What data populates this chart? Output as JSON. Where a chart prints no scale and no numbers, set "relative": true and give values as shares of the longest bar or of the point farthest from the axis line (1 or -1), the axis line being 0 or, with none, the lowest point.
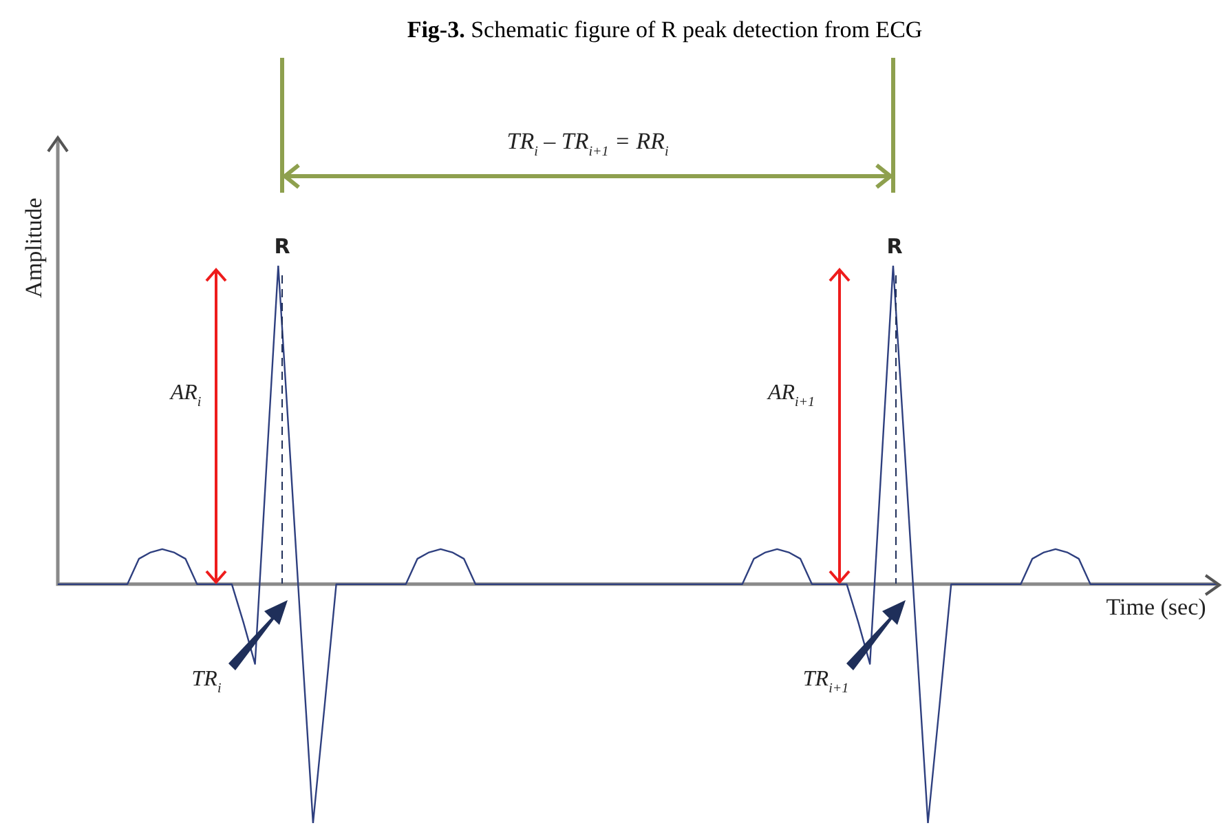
{
  "chart_data": {
    "type": "line",
    "relative": true,
    "title": "Fig-3. Schematic figure of R peak detection from ECG",
    "xlabel": "Time (sec)",
    "ylabel": "Amplitude",
    "marker": "none",
    "line_style": "solid",
    "categories": [
      null,
      null,
      null,
      null,
      null,
      null,
      null,
      null,
      null,
      null,
      null,
      null,
      null,
      null,
      null,
      null,
      null,
      null,
      null,
      null,
      null,
      null,
      null,
      null,
      null,
      null,
      null,
      null,
      null,
      null,
      null,
      null,
      null,
      null,
      null,
      null,
      null,
      null,
      null,
      null,
      null,
      null,
      null,
      null,
      null,
      null,
      null,
      null,
      null,
      null,
      null,
      null,
      null,
      null,
      null,
      null,
      null,
      null,
      null,
      null,
      null,
      null,
      null,
      null,
      null,
      null,
      null,
      null,
      null,
      null,
      null,
      null,
      null,
      null,
      null,
      null,
      null,
      null,
      null,
      null,
      null,
      null,
      null,
      null,
      null,
      null,
      null,
      null,
      null,
      null,
      null,
      null,
      null,
      null,
      null,
      null,
      null,
      null,
      null,
      null,
      null
    ],
    "series": [
      {
        "color": "#2e3f7f",
        "values": [
          0,
          0,
          0,
          0,
          0,
          0,
          0,
          0.08,
          0.1,
          0.11,
          0.1,
          0.08,
          0,
          0,
          0,
          0,
          -0.12,
          -0.25,
          0.38,
          1,
          0.42,
          -0.17,
          -0.75,
          -0.38,
          0,
          0,
          0,
          0,
          0,
          0,
          0,
          0.08,
          0.1,
          0.11,
          0.1,
          0.08,
          0,
          0,
          0,
          0,
          0,
          0,
          0,
          0,
          0,
          0,
          0,
          0,
          0,
          0,
          0,
          0,
          0,
          0,
          0,
          0,
          0,
          0,
          0,
          0,
          0.08,
          0.1,
          0.11,
          0.1,
          0.08,
          0,
          0,
          0,
          0,
          -0.12,
          -0.25,
          0.38,
          1,
          0.42,
          -0.17,
          -0.75,
          -0.38,
          0,
          0,
          0,
          0,
          0,
          0,
          0,
          0.08,
          0.1,
          0.11,
          0.1,
          0.08,
          0,
          0,
          0,
          0,
          0,
          0,
          0,
          0,
          0,
          0,
          0,
          0
        ]
      }
    ],
    "annotations": [
      "TR$_{i}$ – TR$_{i+1}$ = RR$_{i}$",
      "R",
      "R",
      "AR$_{i}$",
      "AR$_{i+1}$",
      "TR$_{i}$",
      "TR$_{i+1}$"
    ]
  }
}
